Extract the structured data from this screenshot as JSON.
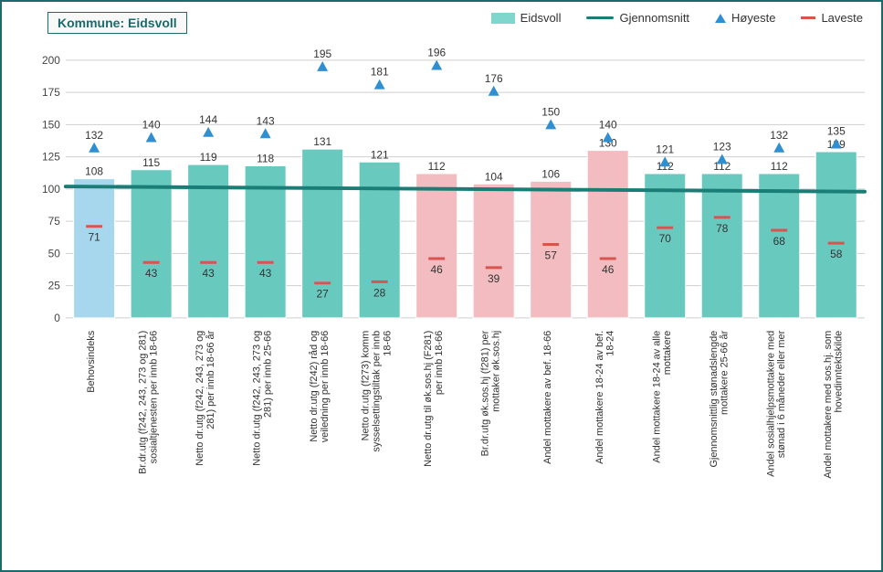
{
  "kommune_label": "Kommune: Eidsvoll",
  "legend": {
    "bar": "Eidsvoll",
    "avg": "Gjennomsnitt",
    "high": "Høyeste",
    "low": "Laveste"
  },
  "colors": {
    "frame": "#1a6b6b",
    "bar_teal": "#68c9bf",
    "bar_pink": "#f3bcc0",
    "bar_blue": "#a7d7ed",
    "avg_line": "#1a7d76",
    "high_marker": "#2f8fd1",
    "low_marker": "#d9534f",
    "grid": "#cfcfcf",
    "text": "#333333",
    "background": "#ffffff",
    "legend_bar": "#7fd6cd"
  },
  "chart": {
    "type": "bar",
    "ylim": [
      0,
      200
    ],
    "ytick_step": 25,
    "avg_value": 100,
    "avg_ends": {
      "start": 102,
      "end": 98
    },
    "label_fontsize": 11,
    "value_fontsize": 12,
    "bar_width_ratio": 0.72,
    "categories": [
      {
        "label": "Behovsindeks",
        "bar": 108,
        "high": 132,
        "low": 71,
        "color_key": "bar_blue"
      },
      {
        "label": "Br.dr.utg (f242, 243, 273 og 281) sosialtjenesten per innb 18-66",
        "bar": 115,
        "high": 140,
        "low": 43,
        "color_key": "bar_teal"
      },
      {
        "label": "Netto dr.utg (f242, 243, 273 og 281) per innb 18-66 år",
        "bar": 119,
        "high": 144,
        "low": 43,
        "color_key": "bar_teal"
      },
      {
        "label": "Netto dr.utg (f242, 243, 273 og 281) per innb 25-66",
        "bar": 118,
        "high": 143,
        "low": 43,
        "color_key": "bar_teal"
      },
      {
        "label": "Netto dr.utg (f242) råd og veiledning per innb 18-66",
        "bar": 131,
        "high": 195,
        "low": 27,
        "color_key": "bar_teal"
      },
      {
        "label": "Netto dr.utg (f273) komm sysselsettingstiltak per innb 18-66",
        "bar": 121,
        "high": 181,
        "low": 28,
        "color_key": "bar_teal"
      },
      {
        "label": "Netto dr.utg til øk.sos.hj (F281) per innb 18-66",
        "bar": 112,
        "high": 196,
        "low": 46,
        "color_key": "bar_pink"
      },
      {
        "label": "Br.dr.utg øk.sos.hj (f281) per mottaker øk.sos.hj",
        "bar": 104,
        "high": 176,
        "low": 39,
        "color_key": "bar_pink"
      },
      {
        "label": "Andel mottakere av bef. 18-66",
        "bar": 106,
        "high": 150,
        "low": 57,
        "color_key": "bar_pink"
      },
      {
        "label": "Andel mottakere 18-24 av bef. 18-24",
        "bar": 130,
        "high": 140,
        "low": 46,
        "color_key": "bar_pink"
      },
      {
        "label": "Andel mottakere 18-24 av alle mottakere",
        "bar": 112,
        "high": 121,
        "low": 70,
        "color_key": "bar_teal"
      },
      {
        "label": "Gjennomsnittlig stønadslengde mottakere 25-66 år",
        "bar": 112,
        "high": 123,
        "low": 78,
        "color_key": "bar_teal"
      },
      {
        "label": "Andel sosialhjelpsmottakere med stønad i 6 måneder eller mer",
        "bar": 112,
        "high": 132,
        "low": 68,
        "color_key": "bar_teal"
      },
      {
        "label": "Andel mottakere med sos.hj. som hovedinntektskilde",
        "bar": 129,
        "high": 135,
        "low": 58,
        "color_key": "bar_teal"
      }
    ]
  }
}
